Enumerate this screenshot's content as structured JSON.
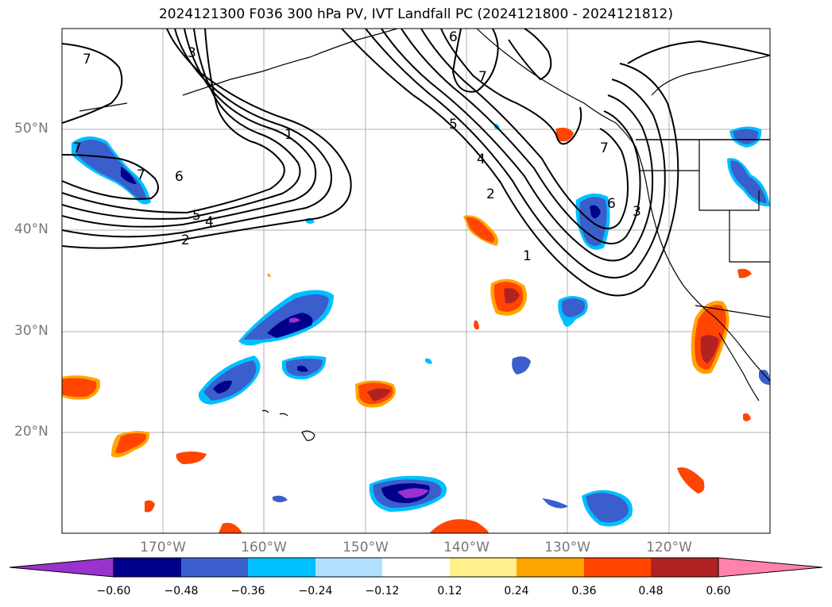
{
  "title": "2024121300 F036 300 hPa PV, IVT Landfall PC (2024121800 - 2024121812)",
  "map": {
    "projection": "PlateCarree",
    "extent": {
      "lon_min": -180,
      "lon_max": -110,
      "lat_min": 10,
      "lat_max": 60
    },
    "lat_labels": [
      "20°N",
      "30°N",
      "40°N",
      "50°N"
    ],
    "lon_labels": [
      "170°W",
      "160°W",
      "150°W",
      "140°W",
      "130°W",
      "120°W"
    ],
    "gridlines": true,
    "contour_field": "300 hPa PV",
    "contour_labels": [
      "1",
      "2",
      "3",
      "4",
      "5",
      "6",
      "7"
    ],
    "shaded_field": "IVT Landfall PC"
  },
  "colorbar": {
    "ticks": [
      "−0.60",
      "−0.48",
      "−0.36",
      "−0.24",
      "−0.12",
      "0.12",
      "0.24",
      "0.36",
      "0.48",
      "0.60"
    ],
    "colors": [
      "#9a32cd",
      "#00008b",
      "#3a5fcd",
      "#00bfff",
      "#b0e2ff",
      "#ffffff",
      "#fff08c",
      "#ffa500",
      "#ff4500",
      "#b22222",
      "#ff82ab"
    ],
    "extend": "both"
  }
}
